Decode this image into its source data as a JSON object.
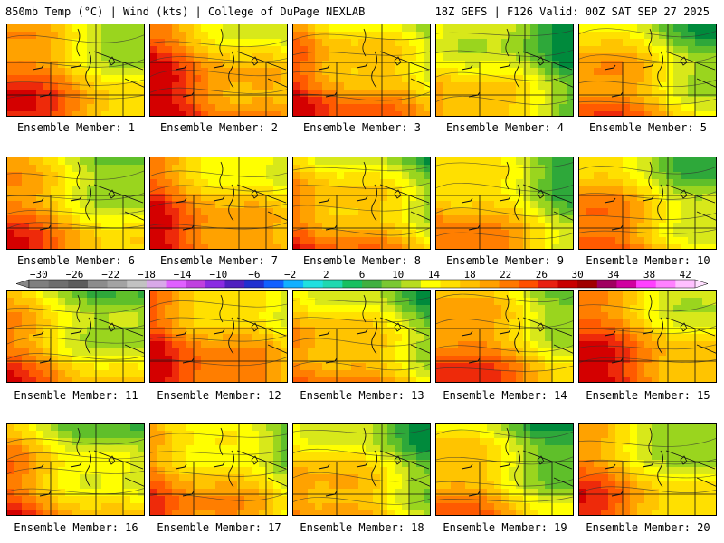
{
  "header": {
    "left": "850mb Temp (°C) | Wind (kts) | College of DuPage NEXLAB",
    "right": "18Z GEFS | F126 Valid: 00Z SAT SEP 27 2025"
  },
  "colorbar": {
    "tick_labels": [
      "-30",
      "-26",
      "-22",
      "-18",
      "-14",
      "-10",
      "-6",
      "-2",
      "2",
      "6",
      "10",
      "14",
      "18",
      "22",
      "26",
      "30",
      "34",
      "38",
      "42"
    ],
    "colors": [
      "#7f7f7f",
      "#6e6e6e",
      "#5c5c5c",
      "#8c8c8c",
      "#a3a3a3",
      "#c2c2c2",
      "#d8a8e8",
      "#e060ff",
      "#c040e0",
      "#8a2be2",
      "#5020c0",
      "#2030d0",
      "#1060ff",
      "#10b0ff",
      "#20e0e0",
      "#20d8b0",
      "#18c060",
      "#40b040",
      "#7ac832",
      "#b8dc20",
      "#ffff00",
      "#ffe000",
      "#ffc000",
      "#ffa000",
      "#ff7800",
      "#ff5000",
      "#e82010",
      "#c80000",
      "#a00000",
      "#a00060",
      "#d000a0",
      "#ff40ff",
      "#ff80ff",
      "#ffc0ff"
    ]
  },
  "members": [
    {
      "label": "Ensemble Member: 1",
      "warmth": 0.62
    },
    {
      "label": "Ensemble Member: 2",
      "warmth": 0.72
    },
    {
      "label": "Ensemble Member: 3",
      "warmth": 0.66
    },
    {
      "label": "Ensemble Member: 4",
      "warmth": 0.42
    },
    {
      "label": "Ensemble Member: 5",
      "warmth": 0.55
    },
    {
      "label": "Ensemble Member: 6",
      "warmth": 0.55
    },
    {
      "label": "Ensemble Member: 7",
      "warmth": 0.68
    },
    {
      "label": "Ensemble Member: 8",
      "warmth": 0.58
    },
    {
      "label": "Ensemble Member: 9",
      "warmth": 0.52
    },
    {
      "label": "Ensemble Member: 10",
      "warmth": 0.55
    },
    {
      "label": "Ensemble Member: 11",
      "warmth": 0.5
    },
    {
      "label": "Ensemble Member: 12",
      "warmth": 0.7
    },
    {
      "label": "Ensemble Member: 13",
      "warmth": 0.55
    },
    {
      "label": "Ensemble Member: 14",
      "warmth": 0.62
    },
    {
      "label": "Ensemble Member: 15",
      "warmth": 0.68
    },
    {
      "label": "Ensemble Member: 16",
      "warmth": 0.52
    },
    {
      "label": "Ensemble Member: 17",
      "warmth": 0.58
    },
    {
      "label": "Ensemble Member: 18",
      "warmth": 0.5
    },
    {
      "label": "Ensemble Member: 19",
      "warmth": 0.48
    },
    {
      "label": "Ensemble Member: 20",
      "warmth": 0.56
    }
  ]
}
